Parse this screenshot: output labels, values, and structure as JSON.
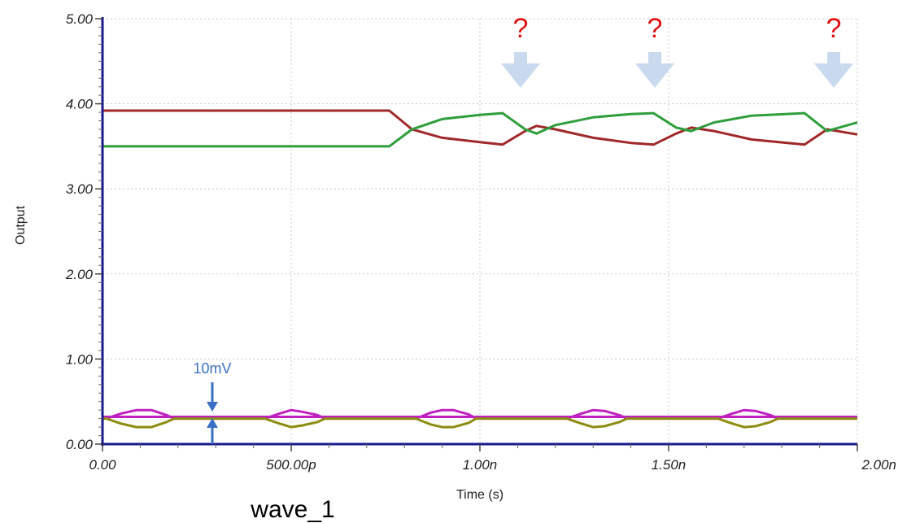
{
  "colors": {
    "axis": "#1a1a8c",
    "grid": "#c8c8c8",
    "series_red": "#a0282a",
    "series_green": "#2f9e3c",
    "series_magenta": "#c020c0",
    "series_olive": "#8c8c10",
    "flat": "#a0282a",
    "question": "#e01010",
    "arrow_fill": "#c9d9ee",
    "annotation": "#3a6fc4"
  },
  "annotations": {
    "question_marks": [
      "?",
      "?",
      "?"
    ],
    "offset_label": "10mV"
  },
  "caption": "wave_1",
  "chart_data": {
    "type": "line",
    "xlabel": "Time (s)",
    "ylabel": "Output",
    "xlim": [
      0,
      2e-09
    ],
    "ylim": [
      0,
      5.0
    ],
    "x_tick_labels": [
      "0.00",
      "500.00p",
      "1.00n",
      "1.50n",
      "2.00n"
    ],
    "x_tick_values": [
      0,
      5e-10,
      1e-09,
      1.5e-09,
      2e-09
    ],
    "y_tick_labels": [
      "0.00",
      "1.00",
      "2.00",
      "3.00",
      "4.00",
      "5.00"
    ],
    "y_tick_values": [
      0,
      1,
      2,
      3,
      4,
      5
    ],
    "grid": true,
    "series": [
      {
        "color_key": "series_red",
        "x": [
          0,
          7.6e-10,
          8.2e-10,
          9e-10,
          1e-09,
          1.06e-09,
          1.12e-09,
          1.15e-09,
          1.2e-09,
          1.3e-09,
          1.4e-09,
          1.46e-09,
          1.52e-09,
          1.56e-09,
          1.62e-09,
          1.72e-09,
          1.86e-09,
          1.92e-09,
          2e-09
        ],
        "y": [
          3.92,
          3.92,
          3.7,
          3.6,
          3.55,
          3.52,
          3.68,
          3.74,
          3.7,
          3.6,
          3.54,
          3.52,
          3.65,
          3.72,
          3.68,
          3.58,
          3.52,
          3.7,
          3.64
        ]
      },
      {
        "color_key": "series_green",
        "x": [
          0,
          7.6e-10,
          8.2e-10,
          9e-10,
          1e-09,
          1.06e-09,
          1.12e-09,
          1.15e-09,
          1.2e-09,
          1.3e-09,
          1.4e-09,
          1.46e-09,
          1.52e-09,
          1.56e-09,
          1.62e-09,
          1.72e-09,
          1.86e-09,
          1.92e-09,
          2e-09
        ],
        "y": [
          3.5,
          3.5,
          3.7,
          3.82,
          3.87,
          3.89,
          3.7,
          3.65,
          3.75,
          3.84,
          3.88,
          3.89,
          3.72,
          3.68,
          3.78,
          3.86,
          3.89,
          3.68,
          3.78
        ]
      },
      {
        "color_key": "series_magenta",
        "x": [
          0,
          2e-10,
          2.2e-10,
          2.5e-10,
          2.8e-10,
          3e-10,
          3.5e-10,
          4e-10,
          4.5e-10,
          5e-10,
          5.5e-10,
          6e-10,
          6.2e-10,
          6.5e-10,
          6.8e-10,
          7e-10,
          7.5e-10,
          8e-10,
          8.5e-10,
          9e-10,
          9.5e-10,
          1e-09,
          1.02e-09,
          1.05e-09,
          1.08e-09,
          1.1e-09,
          1.15e-09,
          1.2e-09,
          1.25e-09,
          1.3e-09,
          1.35e-09,
          1.4e-09,
          1.42e-09,
          1.45e-09,
          1.48e-09,
          1.5e-09,
          1.55e-09,
          1.6e-09,
          1.65e-09,
          1.7e-09,
          1.75e-09,
          1.8e-09,
          1.82e-09,
          1.85e-09,
          1.88e-09,
          1.9e-09,
          2e-09
        ],
        "y": [
          0.32,
          0.32,
          0.32,
          0.32,
          0.32,
          0.32,
          0.32,
          0.32,
          0.32,
          0.32,
          0.32,
          0.32,
          0.32,
          0.32,
          0.32,
          0.32,
          0.32,
          0.32,
          0.32,
          0.32,
          0.32,
          0.32,
          0.32,
          0.32,
          0.32,
          0.32,
          0.32,
          0.32,
          0.32,
          0.32,
          0.32,
          0.32,
          0.32,
          0.32,
          0.32,
          0.32,
          0.32,
          0.32,
          0.32,
          0.32,
          0.32,
          0.32,
          0.32,
          0.32,
          0.32,
          0.32,
          0.32
        ]
      },
      {
        "color_key": "series_magenta",
        "x": [
          0,
          1e-11,
          5e-11,
          9e-11,
          1.3e-10,
          1.7e-10,
          1.9e-10,
          4.1e-10,
          4.3e-10,
          4.7e-10,
          5e-10,
          5.3e-10,
          5.7e-10,
          5.9e-10,
          8.1e-10,
          8.3e-10,
          8.7e-10,
          9e-10,
          9.3e-10,
          9.7e-10,
          9.9e-10,
          1.21e-09,
          1.23e-09,
          1.27e-09,
          1.3e-09,
          1.33e-09,
          1.37e-09,
          1.39e-09,
          1.61e-09,
          1.63e-09,
          1.67e-09,
          1.7e-09,
          1.73e-09,
          1.77e-09,
          1.79e-09,
          2e-09
        ],
        "y": [
          0.3,
          0.3,
          0.36,
          0.4,
          0.4,
          0.34,
          0.3,
          0.3,
          0.3,
          0.36,
          0.4,
          0.38,
          0.34,
          0.3,
          0.3,
          0.3,
          0.37,
          0.4,
          0.4,
          0.35,
          0.3,
          0.3,
          0.3,
          0.36,
          0.4,
          0.39,
          0.34,
          0.3,
          0.3,
          0.3,
          0.36,
          0.4,
          0.39,
          0.34,
          0.3,
          0.3
        ]
      },
      {
        "color_key": "series_olive",
        "x": [
          0,
          1e-11,
          5e-11,
          9e-11,
          1.3e-10,
          1.7e-10,
          1.9e-10,
          4.1e-10,
          4.3e-10,
          4.7e-10,
          5e-10,
          5.3e-10,
          5.7e-10,
          5.9e-10,
          8.1e-10,
          8.3e-10,
          8.7e-10,
          9e-10,
          9.3e-10,
          9.7e-10,
          9.9e-10,
          1.21e-09,
          1.23e-09,
          1.27e-09,
          1.3e-09,
          1.33e-09,
          1.37e-09,
          1.39e-09,
          1.61e-09,
          1.63e-09,
          1.67e-09,
          1.7e-09,
          1.73e-09,
          1.77e-09,
          1.79e-09,
          2e-09
        ],
        "y": [
          0.3,
          0.3,
          0.24,
          0.2,
          0.2,
          0.26,
          0.3,
          0.3,
          0.3,
          0.24,
          0.2,
          0.22,
          0.26,
          0.3,
          0.3,
          0.3,
          0.23,
          0.2,
          0.2,
          0.25,
          0.3,
          0.3,
          0.3,
          0.24,
          0.2,
          0.21,
          0.26,
          0.3,
          0.3,
          0.3,
          0.24,
          0.2,
          0.21,
          0.26,
          0.3,
          0.3
        ]
      }
    ]
  }
}
